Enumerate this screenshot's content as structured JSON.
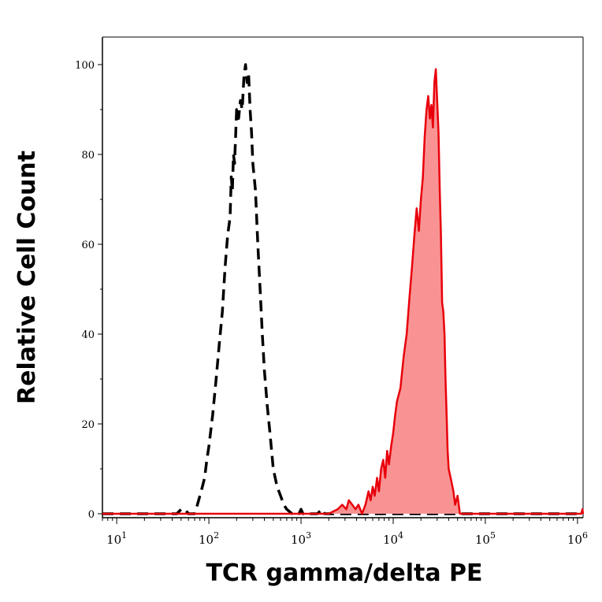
{
  "chart_data": {
    "type": "area",
    "xlabel": "TCR gamma/delta PE",
    "ylabel": "Relative Cell Count",
    "x_scale": "log",
    "xlim": [
      7,
      1150000
    ],
    "ylim": [
      0,
      100
    ],
    "x_ticks": [
      {
        "value": 10,
        "base": "10",
        "exp": "1"
      },
      {
        "value": 100,
        "base": "10",
        "exp": "2"
      },
      {
        "value": 1000,
        "base": "10",
        "exp": "3"
      },
      {
        "value": 10000,
        "base": "10",
        "exp": "4"
      },
      {
        "value": 100000,
        "base": "10",
        "exp": "5"
      },
      {
        "value": 1000000,
        "base": "10",
        "exp": "6"
      }
    ],
    "y_ticks": [
      0,
      20,
      40,
      60,
      80,
      100
    ],
    "grid": false,
    "legend": "none",
    "series": [
      {
        "style": "dashed",
        "color": "#000000",
        "fill": "none",
        "points": [
          [
            7,
            0
          ],
          [
            30,
            0
          ],
          [
            45,
            0
          ],
          [
            50,
            1
          ],
          [
            55,
            1
          ],
          [
            60,
            0
          ],
          [
            70,
            0
          ],
          [
            75,
            2
          ],
          [
            80,
            4
          ],
          [
            85,
            6
          ],
          [
            90,
            8
          ],
          [
            95,
            12
          ],
          [
            100,
            15
          ],
          [
            110,
            22
          ],
          [
            120,
            30
          ],
          [
            130,
            38
          ],
          [
            140,
            45
          ],
          [
            150,
            55
          ],
          [
            160,
            62
          ],
          [
            170,
            66
          ],
          [
            175,
            75
          ],
          [
            180,
            72
          ],
          [
            185,
            80
          ],
          [
            190,
            78
          ],
          [
            195,
            84
          ],
          [
            200,
            90
          ],
          [
            210,
            88
          ],
          [
            220,
            92
          ],
          [
            230,
            90
          ],
          [
            240,
            97
          ],
          [
            250,
            100
          ],
          [
            260,
            96
          ],
          [
            270,
            98
          ],
          [
            280,
            90
          ],
          [
            290,
            85
          ],
          [
            300,
            78
          ],
          [
            320,
            72
          ],
          [
            340,
            60
          ],
          [
            360,
            50
          ],
          [
            380,
            40
          ],
          [
            400,
            32
          ],
          [
            430,
            24
          ],
          [
            460,
            18
          ],
          [
            500,
            10
          ],
          [
            550,
            6
          ],
          [
            600,
            4
          ],
          [
            650,
            2
          ],
          [
            700,
            1
          ],
          [
            800,
            0
          ],
          [
            950,
            0
          ],
          [
            1000,
            1
          ],
          [
            1050,
            0
          ],
          [
            1500,
            0
          ],
          [
            1700,
            1
          ],
          [
            1800,
            0
          ],
          [
            100000,
            0
          ],
          [
            1150000,
            0
          ]
        ]
      },
      {
        "style": "solid",
        "color": "#e8000b",
        "fill": "#f99393",
        "points": [
          [
            7,
            0
          ],
          [
            2000,
            0
          ],
          [
            2500,
            1
          ],
          [
            2800,
            2
          ],
          [
            3100,
            1
          ],
          [
            3300,
            3
          ],
          [
            3600,
            2
          ],
          [
            3900,
            1
          ],
          [
            4200,
            2
          ],
          [
            4600,
            0
          ],
          [
            5000,
            2
          ],
          [
            5400,
            5
          ],
          [
            5700,
            3
          ],
          [
            6000,
            6
          ],
          [
            6300,
            4
          ],
          [
            6700,
            8
          ],
          [
            7000,
            5
          ],
          [
            7400,
            10
          ],
          [
            7800,
            12
          ],
          [
            8200,
            8
          ],
          [
            8600,
            14
          ],
          [
            9000,
            11
          ],
          [
            9500,
            15
          ],
          [
            10000,
            18
          ],
          [
            10500,
            22
          ],
          [
            11000,
            25
          ],
          [
            12000,
            28
          ],
          [
            13000,
            35
          ],
          [
            14000,
            40
          ],
          [
            15000,
            48
          ],
          [
            16000,
            55
          ],
          [
            17000,
            62
          ],
          [
            18000,
            68
          ],
          [
            19000,
            63
          ],
          [
            20000,
            70
          ],
          [
            21000,
            75
          ],
          [
            22000,
            84
          ],
          [
            23000,
            90
          ],
          [
            24000,
            93
          ],
          [
            25000,
            88
          ],
          [
            26000,
            91
          ],
          [
            27000,
            86
          ],
          [
            28000,
            96
          ],
          [
            29000,
            99
          ],
          [
            30000,
            92
          ],
          [
            31000,
            85
          ],
          [
            32000,
            72
          ],
          [
            33000,
            62
          ],
          [
            34000,
            47
          ],
          [
            35000,
            45
          ],
          [
            36000,
            40
          ],
          [
            37000,
            30
          ],
          [
            38000,
            22
          ],
          [
            39000,
            14
          ],
          [
            40000,
            10
          ],
          [
            42000,
            8
          ],
          [
            45000,
            5
          ],
          [
            47000,
            2
          ],
          [
            50000,
            4
          ],
          [
            53000,
            0
          ],
          [
            100000,
            0
          ],
          [
            1100000,
            0
          ],
          [
            1130000,
            1
          ],
          [
            1150000,
            0
          ]
        ]
      }
    ]
  }
}
